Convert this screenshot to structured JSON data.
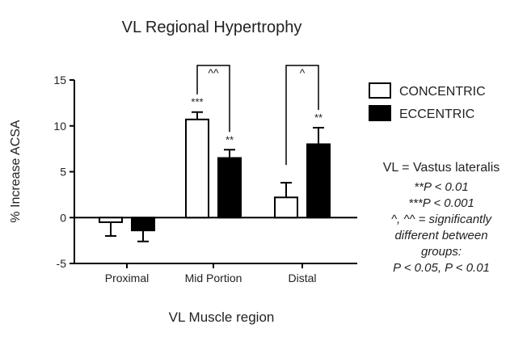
{
  "chart_data": {
    "type": "bar",
    "title": "VL Regional Hypertrophy",
    "xlabel": "VL Muscle region",
    "ylabel": "% Increase ACSA",
    "ylim": [
      -5,
      15
    ],
    "yticks": [
      "-5",
      "0",
      "5",
      "10",
      "15"
    ],
    "categories": [
      "Proximal",
      "Mid Portion",
      "Distal"
    ],
    "series": [
      {
        "name": "CONCENTRIC",
        "color": "#ffffff",
        "values": [
          -0.5,
          10.7,
          2.2
        ],
        "errors": [
          1.5,
          0.8,
          1.6
        ],
        "annotations": [
          "",
          "***",
          ""
        ]
      },
      {
        "name": "ECCENTRIC",
        "color": "#000000",
        "values": [
          -1.4,
          6.5,
          8.0
        ],
        "errors": [
          1.2,
          0.9,
          1.8
        ],
        "annotations": [
          "",
          "**",
          "**"
        ]
      }
    ],
    "brackets": [
      {
        "category": "Mid Portion",
        "label": "^^"
      },
      {
        "category": "Distal",
        "label": "^"
      }
    ],
    "legend_position": "right",
    "grid": false
  },
  "notes": {
    "definition": "VL = Vastus lateralis",
    "lines": [
      "**P < 0.01",
      "***P < 0.001",
      "^, ^^ = significantly",
      "different between",
      "groups:",
      "P < 0.05,  P < 0.01"
    ]
  }
}
